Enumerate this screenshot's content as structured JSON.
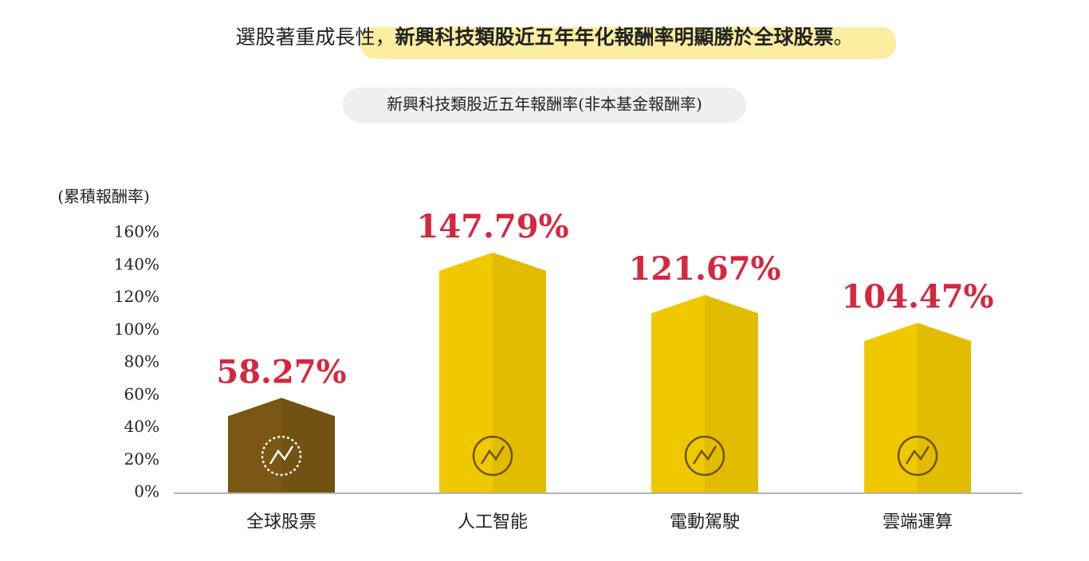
{
  "chart_data": {
    "type": "bar",
    "title": {
      "lead": "選股著重成長性，",
      "highlight": "新興科技類股近五年年化報酬率明顯勝於全球股票",
      "end": "。"
    },
    "subtitle": "新興科技類股近五年報酬率(非本基金報酬率)",
    "y_label": "(累積報酬率)",
    "categories": [
      "全球股票",
      "人工智能",
      "電動駕駛",
      "雲端運算"
    ],
    "values": [
      58.27,
      147.79,
      121.67,
      104.47
    ],
    "value_labels": [
      "58.27%",
      "147.79%",
      "121.67%",
      "104.47%"
    ],
    "colors": [
      "#7a5814",
      "#f0c800",
      "#f0c800",
      "#f0c800"
    ],
    "ylim": [
      0,
      160
    ],
    "yticks": [
      {
        "value": 0,
        "label": "0%"
      },
      {
        "value": 20,
        "label": "20%"
      },
      {
        "value": 40,
        "label": "40%"
      },
      {
        "value": 60,
        "label": "60%"
      },
      {
        "value": 80,
        "label": "80%"
      },
      {
        "value": 100,
        "label": "100%"
      },
      {
        "value": 120,
        "label": "120%"
      },
      {
        "value": 140,
        "label": "140%"
      },
      {
        "value": 160,
        "label": "160%"
      }
    ],
    "grid": false
  }
}
